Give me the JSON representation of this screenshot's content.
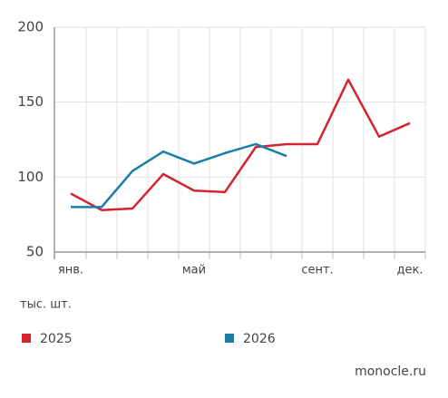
{
  "chart_data": {
    "type": "line",
    "categories": [
      "янв.",
      null,
      null,
      null,
      "май",
      null,
      null,
      null,
      "сент.",
      null,
      null,
      "дек."
    ],
    "series": [
      {
        "name": "2025",
        "color": "#d4252f",
        "values": [
          89,
          78,
          79,
          102,
          91,
          90,
          120,
          122,
          122,
          165,
          127,
          136
        ]
      },
      {
        "name": "2026",
        "color": "#1a7fa8",
        "values": [
          80,
          80,
          104,
          117,
          109,
          116,
          122,
          114,
          null,
          null,
          null,
          null
        ]
      }
    ],
    "ylim": [
      50,
      200
    ],
    "yticks": [
      50,
      100,
      150,
      200
    ],
    "grid": true,
    "ylabel": "тыс. шт.",
    "source": "monocle.ru"
  }
}
